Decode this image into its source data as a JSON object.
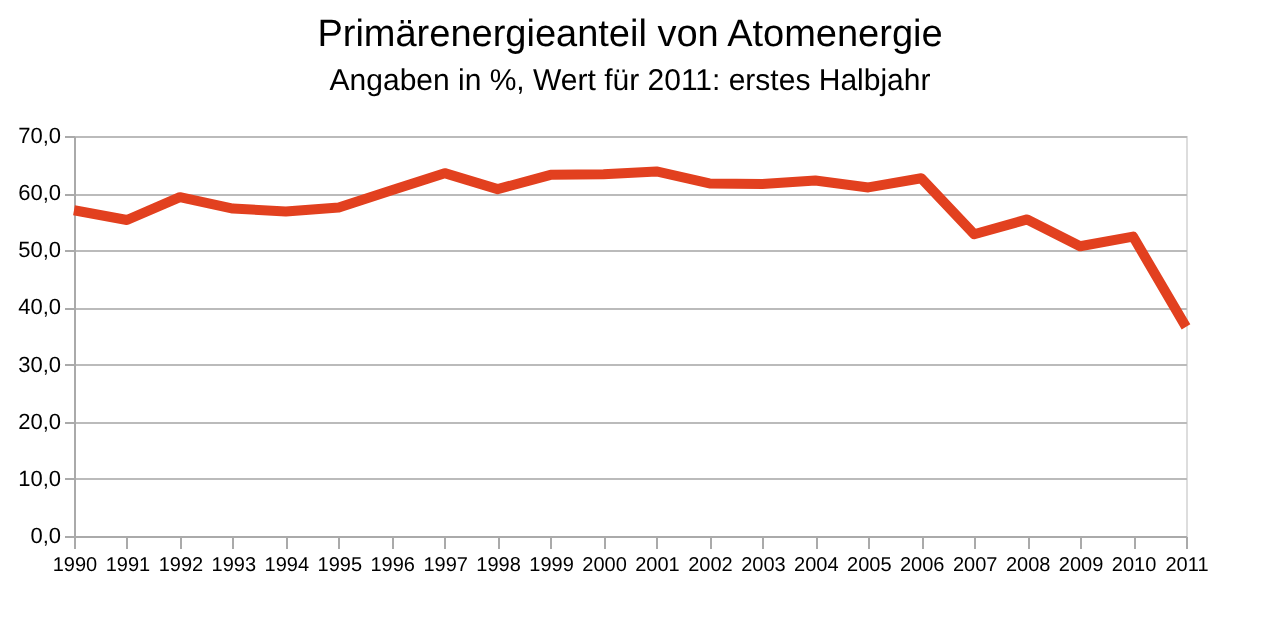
{
  "chart_data": {
    "type": "line",
    "title": "Primärenergieanteil von Atomenergie",
    "subtitle": "Angaben in %, Wert für 2011: erstes Halbjahr",
    "x": [
      1990,
      1991,
      1992,
      1993,
      1994,
      1995,
      1996,
      1997,
      1998,
      1999,
      2000,
      2001,
      2002,
      2003,
      2004,
      2005,
      2006,
      2007,
      2008,
      2009,
      2010,
      2011
    ],
    "series": [
      {
        "color": "#e2401f",
        "values": [
          57.0,
          55.3,
          59.3,
          57.3,
          56.8,
          57.5,
          60.5,
          63.5,
          60.7,
          63.2,
          63.3,
          63.8,
          61.7,
          61.6,
          62.2,
          61.0,
          62.6,
          52.8,
          55.4,
          50.7,
          52.4,
          36.6
        ]
      }
    ],
    "xlim": [
      1990,
      2011
    ],
    "xticks": [
      1990,
      1991,
      1992,
      1993,
      1994,
      1995,
      1996,
      1997,
      1998,
      1999,
      2000,
      2001,
      2002,
      2003,
      2004,
      2005,
      2006,
      2007,
      2008,
      2009,
      2010,
      2011
    ],
    "ylim": [
      0,
      70
    ],
    "yticks": [
      {
        "value": 0,
        "label": "0,0"
      },
      {
        "value": 10,
        "label": "10,0"
      },
      {
        "value": 20,
        "label": "20,0"
      },
      {
        "value": 30,
        "label": "30,0"
      },
      {
        "value": 40,
        "label": "40,0"
      },
      {
        "value": 50,
        "label": "50,0"
      },
      {
        "value": 60,
        "label": "60,0"
      },
      {
        "value": 70,
        "label": "70,0"
      }
    ],
    "grid": "y",
    "marker": "none",
    "line_style": "solid"
  }
}
